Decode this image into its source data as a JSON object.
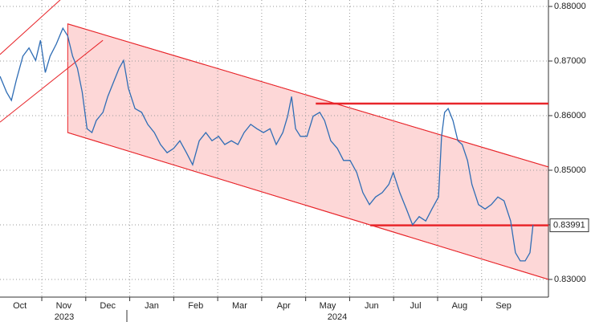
{
  "chart_data": {
    "type": "line",
    "series": [
      {
        "color": "#2f6db5",
        "x": [
          0.05,
          0.2,
          0.31,
          0.42,
          0.57,
          0.71,
          0.86,
          0.97,
          1.08,
          1.19,
          1.33,
          1.48,
          1.59,
          1.7,
          1.81,
          1.92,
          2.03,
          2.14,
          2.24,
          2.39,
          2.5,
          2.65,
          2.76,
          2.86,
          2.97,
          3.12,
          3.27,
          3.41,
          3.56,
          3.7,
          3.85,
          4.0,
          4.14,
          4.29,
          4.43,
          4.58,
          4.73,
          4.87,
          5.02,
          5.16,
          5.31,
          5.46,
          5.6,
          5.75,
          5.89,
          6.04,
          6.19,
          6.33,
          6.48,
          6.59,
          6.68,
          6.77,
          6.88,
          7.03,
          7.17,
          7.32,
          7.43,
          7.57,
          7.72,
          7.86,
          8.01,
          8.16,
          8.3,
          8.45,
          8.59,
          8.74,
          8.89,
          8.99,
          9.14,
          9.29,
          9.43,
          9.58,
          9.73,
          9.87,
          10.02,
          10.09,
          10.16,
          10.24,
          10.35,
          10.46,
          10.56,
          10.68,
          10.78,
          10.93,
          11.08,
          11.22,
          11.37,
          11.51,
          11.66,
          11.77,
          11.88,
          11.99,
          12.1,
          12.17
        ],
        "values": [
          0.8672,
          0.8643,
          0.8628,
          0.8665,
          0.8709,
          0.8724,
          0.8701,
          0.8738,
          0.8679,
          0.8709,
          0.8731,
          0.876,
          0.8746,
          0.8709,
          0.8687,
          0.8643,
          0.8576,
          0.8569,
          0.8591,
          0.8606,
          0.8635,
          0.8665,
          0.8687,
          0.8701,
          0.865,
          0.8613,
          0.8606,
          0.8584,
          0.8569,
          0.8547,
          0.8532,
          0.854,
          0.8554,
          0.8532,
          0.851,
          0.8554,
          0.8569,
          0.8554,
          0.8562,
          0.8547,
          0.8554,
          0.8547,
          0.8569,
          0.8584,
          0.8576,
          0.8569,
          0.8576,
          0.8547,
          0.8569,
          0.8599,
          0.8635,
          0.8576,
          0.8562,
          0.8562,
          0.8599,
          0.8606,
          0.8591,
          0.8554,
          0.854,
          0.8518,
          0.8518,
          0.8496,
          0.8459,
          0.8437,
          0.8451,
          0.8459,
          0.8474,
          0.8496,
          0.8459,
          0.8429,
          0.84,
          0.8415,
          0.8407,
          0.8429,
          0.8451,
          0.8562,
          0.8606,
          0.8613,
          0.8591,
          0.8554,
          0.8547,
          0.8518,
          0.8474,
          0.8437,
          0.8429,
          0.8437,
          0.8451,
          0.8444,
          0.8407,
          0.8349,
          0.8334,
          0.8334,
          0.8349,
          0.84
        ]
      }
    ],
    "trend_lines": [
      {
        "x": [
          0.05,
          1.42
        ],
        "y": [
          0.8712,
          0.8812
        ]
      },
      {
        "x": [
          0.05,
          2.39
        ],
        "y": [
          0.8588,
          0.8738
        ]
      },
      {
        "x": [
          1.59,
          12.52
        ],
        "y": [
          0.8768,
          0.8506
        ]
      },
      {
        "x": [
          1.59,
          12.52
        ],
        "y": [
          0.8569,
          0.83
        ]
      },
      {
        "x": [
          7.23,
          12.52
        ],
        "y": [
          0.8622,
          0.8622
        ]
      },
      {
        "x": [
          8.47,
          12.52
        ],
        "y": [
          0.8399,
          0.8399
        ]
      }
    ],
    "trend_color": "#e8262b",
    "channel_color": "#fdd7d7",
    "last_price": 0.83991,
    "xlim": [
      0.05,
      12.52
    ],
    "ylim": [
      0.82676,
      0.88118
    ],
    "xticks": [
      {
        "value": 0,
        "label": "Oct"
      },
      {
        "value": 1,
        "label": "Nov"
      },
      {
        "value": 2,
        "label": "Dec"
      },
      {
        "value": 3,
        "label": "Jan"
      },
      {
        "value": 4,
        "label": "Feb"
      },
      {
        "value": 5,
        "label": "Mar"
      },
      {
        "value": 6,
        "label": "Apr"
      },
      {
        "value": 7,
        "label": "May"
      },
      {
        "value": 8,
        "label": "Jun"
      },
      {
        "value": 9,
        "label": "Jul"
      },
      {
        "value": 10,
        "label": "Aug"
      },
      {
        "value": 11,
        "label": "Sep"
      }
    ],
    "years": [
      "2023",
      "2024"
    ],
    "yticks": [
      {
        "value": 0.83,
        "label": "0.83000"
      },
      {
        "value": 0.84,
        "label": "0.84000"
      },
      {
        "value": 0.85,
        "label": "0.85000"
      },
      {
        "value": 0.86,
        "label": "0.86000"
      },
      {
        "value": 0.87,
        "label": "0.87000"
      },
      {
        "value": 0.88,
        "label": "0.88000"
      }
    ],
    "grid": true
  }
}
